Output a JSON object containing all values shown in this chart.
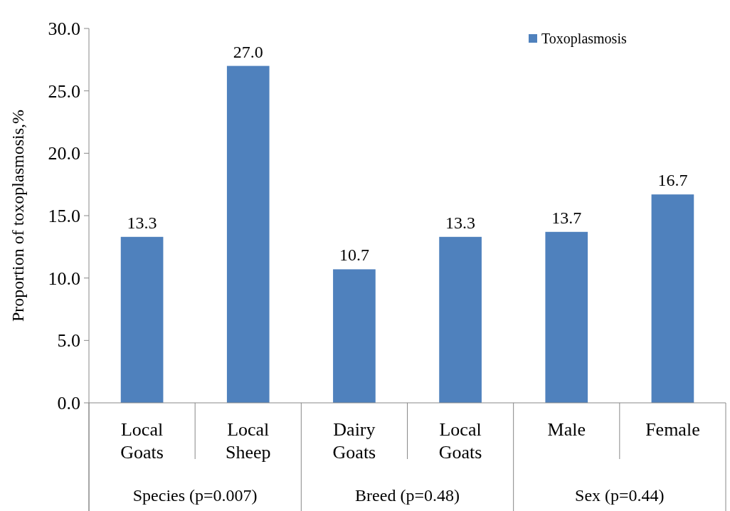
{
  "chart_data": {
    "type": "bar",
    "ylabel": "Proportion of toxoplasmosis,%",
    "categories": [
      "Local\nGoats",
      "Local\nSheep",
      "Dairy\nGoats",
      "Local\nGoats",
      "Male",
      "Female"
    ],
    "series": [
      {
        "name": "Toxoplasmosis",
        "color": "#4f81bd",
        "values": [
          13.3,
          27.0,
          10.7,
          13.3,
          13.7,
          16.7
        ]
      }
    ],
    "value_labels": [
      "13.3",
      "27.0",
      "10.7",
      "13.3",
      "13.7",
      "16.7"
    ],
    "ylim": [
      0,
      30
    ],
    "yticks": [
      {
        "value": 0,
        "label": "0.0"
      },
      {
        "value": 5,
        "label": "5.0"
      },
      {
        "value": 10,
        "label": "10.0"
      },
      {
        "value": 15,
        "label": "15.0"
      },
      {
        "value": 20,
        "label": "20.0"
      },
      {
        "value": 25,
        "label": "25.0"
      },
      {
        "value": 30,
        "label": "30.0"
      }
    ],
    "annotations": [
      "Species (p=0.007)",
      "Breed (p=0.48)",
      "Sex (p=0.44)"
    ],
    "legend": "top right",
    "grid": false
  }
}
